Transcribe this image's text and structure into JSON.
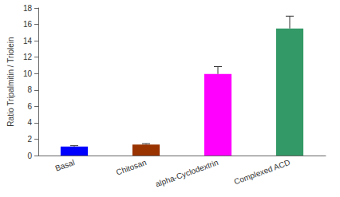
{
  "chart_data": {
    "type": "bar",
    "y_label": "Ratio Tripalmitin / Triolein",
    "categories": [
      "Basal",
      "Chitosan",
      "alpha-Cyclodextrin",
      "Complexed ACD"
    ],
    "values": [
      1.1,
      1.35,
      9.95,
      15.5
    ],
    "errors": [
      0.1,
      0.1,
      0.9,
      1.5
    ],
    "colors": [
      "#0000ff",
      "#993300",
      "#ff00ff",
      "#339966"
    ],
    "ylim": [
      0,
      18
    ],
    "yticks": [
      0,
      2,
      4,
      6,
      8,
      10,
      12,
      14,
      16,
      18
    ],
    "grid": false
  }
}
